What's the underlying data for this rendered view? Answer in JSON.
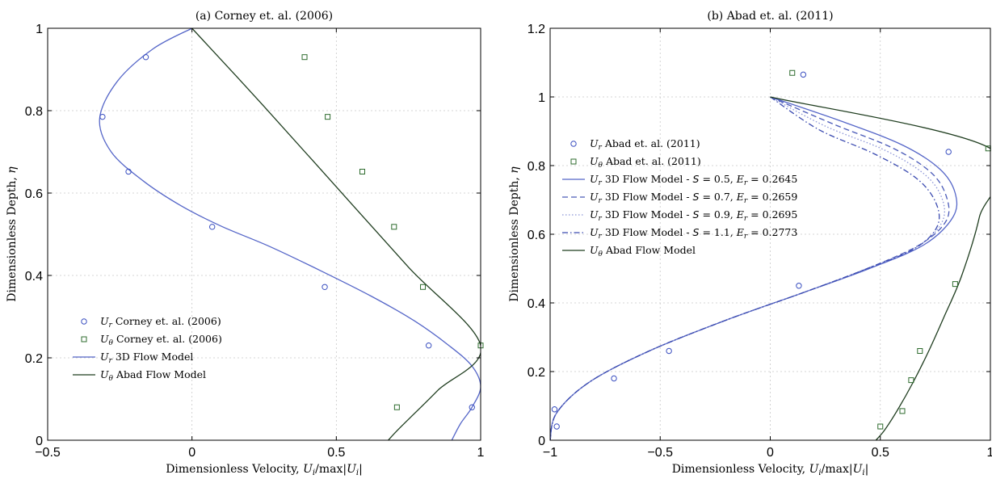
{
  "chart_data": [
    {
      "type": "line",
      "title": "(a) Corney et. al. (2006)",
      "xlabel": "Dimensionless Velocity, U_i/max|U_i|",
      "ylabel": "Dimensionless Depth, η",
      "xlim": [
        -0.5,
        1
      ],
      "ylim": [
        0,
        1
      ],
      "xticks": [
        -0.5,
        0,
        0.5,
        1
      ],
      "xtick_labels": [
        "−0.5",
        "0",
        "0.5",
        "1"
      ],
      "yticks": [
        0,
        0.2,
        0.4,
        0.6,
        0.8,
        1
      ],
      "ytick_labels": [
        "0",
        "0.2",
        "0.4",
        "0.6",
        "0.8",
        "1"
      ],
      "grid": true,
      "legend_position": "lower-left",
      "series": [
        {
          "name": "U_r Corney et. al. (2006)",
          "kind": "scatter",
          "marker": "circle",
          "color": "#3a4fc0",
          "x": [
            -0.16,
            -0.31,
            -0.22,
            0.07,
            0.46,
            0.82,
            0.97
          ],
          "y": [
            0.93,
            0.785,
            0.652,
            0.518,
            0.372,
            0.23,
            0.08
          ]
        },
        {
          "name": "U_θ Corney et. al. (2006)",
          "kind": "scatter",
          "marker": "square",
          "color": "#2e6b2e",
          "x": [
            0.39,
            0.47,
            0.59,
            0.7,
            0.8,
            1.0,
            0.71
          ],
          "y": [
            0.93,
            0.785,
            0.652,
            0.518,
            0.372,
            0.23,
            0.08
          ]
        },
        {
          "name": "U_r 3D Flow Model",
          "kind": "line",
          "dash": "solid",
          "color": "#5566c8",
          "x": [
            0,
            -0.135,
            -0.26,
            -0.32,
            -0.28,
            -0.17,
            -0.04,
            0.1,
            0.27,
            0.45,
            0.62,
            0.77,
            0.89,
            0.97,
            1.0,
            0.97,
            0.93,
            0.9
          ],
          "y": [
            1.0,
            0.95,
            0.87,
            0.78,
            0.7,
            0.63,
            0.57,
            0.52,
            0.47,
            0.41,
            0.35,
            0.29,
            0.23,
            0.18,
            0.13,
            0.08,
            0.04,
            0.0
          ]
        },
        {
          "name": "U_θ Abad Flow Model",
          "kind": "line",
          "dash": "solid",
          "color": "#1f3d1f",
          "x": [
            0,
            0.25,
            0.5,
            0.75,
            1.0,
            0.85,
            0.72,
            0.68
          ],
          "y": [
            1.0,
            0.81,
            0.615,
            0.42,
            0.23,
            0.12,
            0.03,
            0.0
          ]
        }
      ]
    },
    {
      "type": "line",
      "title": "(b) Abad et. al. (2011)",
      "xlabel": "Dimensionless Velocity, U_i/max|U_i|",
      "ylabel": "Dimensionless Depth, η",
      "xlim": [
        -1,
        1
      ],
      "ylim": [
        0,
        1.2
      ],
      "xticks": [
        -1,
        -0.5,
        0,
        0.5,
        1
      ],
      "xtick_labels": [
        "−1",
        "−0.5",
        "0",
        "0.5",
        "1"
      ],
      "yticks": [
        0,
        0.2,
        0.4,
        0.6,
        0.8,
        1,
        1.2
      ],
      "ytick_labels": [
        "0",
        "0.2",
        "0.4",
        "0.6",
        "0.8",
        "1",
        "1.2"
      ],
      "grid": true,
      "legend_position": "middle-left",
      "series": [
        {
          "name": "U_r Abad et. al. (2011)",
          "kind": "scatter",
          "marker": "circle",
          "color": "#3a4fc0",
          "x": [
            0.15,
            0.81,
            0.13,
            -0.46,
            -0.71,
            -0.97,
            -0.98
          ],
          "y": [
            1.065,
            0.84,
            0.45,
            0.26,
            0.18,
            0.04,
            0.09
          ]
        },
        {
          "name": "U_θ Abad et. al. (2011)",
          "kind": "scatter",
          "marker": "square",
          "color": "#2e6b2e",
          "x": [
            0.1,
            0.99,
            0.84,
            0.68,
            0.64,
            0.6,
            0.5
          ],
          "y": [
            1.07,
            0.85,
            0.455,
            0.26,
            0.175,
            0.085,
            0.04
          ]
        },
        {
          "name": "U_r 3D Flow Model - S = 0.5, E_r = 0.2645",
          "kind": "line",
          "dash": "solid",
          "color": "#5566c8",
          "x": [
            0,
            0.32,
            0.6,
            0.77,
            0.84,
            0.83,
            0.7,
            0.45,
            0.15,
            -0.2,
            -0.55,
            -0.82,
            -0.97,
            -1.0
          ],
          "y": [
            1.0,
            0.93,
            0.86,
            0.79,
            0.72,
            0.65,
            0.57,
            0.5,
            0.43,
            0.35,
            0.26,
            0.17,
            0.08,
            0.0
          ]
        },
        {
          "name": "U_r 3D Flow Model - S = 0.7, E_r = 0.2659",
          "kind": "line",
          "dash": "dashed",
          "color": "#4a5ab8",
          "x": [
            0,
            0.29,
            0.56,
            0.73,
            0.8,
            0.8,
            0.68,
            0.44,
            0.15,
            -0.2,
            -0.55,
            -0.82,
            -0.97,
            -1.0
          ],
          "y": [
            1.0,
            0.92,
            0.85,
            0.78,
            0.71,
            0.64,
            0.57,
            0.5,
            0.43,
            0.35,
            0.26,
            0.17,
            0.08,
            0.0
          ]
        },
        {
          "name": "U_r 3D Flow Model - S = 0.9, E_r = 0.2695",
          "kind": "line",
          "dash": "dotted",
          "color": "#8a93d6",
          "x": [
            0,
            0.25,
            0.52,
            0.7,
            0.78,
            0.78,
            0.67,
            0.44,
            0.15,
            -0.2,
            -0.55,
            -0.82,
            -0.97,
            -1.0
          ],
          "y": [
            1.0,
            0.915,
            0.845,
            0.775,
            0.705,
            0.635,
            0.565,
            0.5,
            0.43,
            0.35,
            0.26,
            0.17,
            0.08,
            0.0
          ]
        },
        {
          "name": "U_r 3D Flow Model - S = 1.1, E_r = 0.2773",
          "kind": "line",
          "dash": "dashdot",
          "color": "#3a4ab0",
          "x": [
            0,
            0.22,
            0.47,
            0.66,
            0.75,
            0.76,
            0.66,
            0.44,
            0.15,
            -0.2,
            -0.55,
            -0.82,
            -0.97,
            -1.0
          ],
          "y": [
            1.0,
            0.905,
            0.835,
            0.765,
            0.695,
            0.625,
            0.56,
            0.5,
            0.43,
            0.35,
            0.26,
            0.17,
            0.08,
            0.0
          ]
        },
        {
          "name": "U_θ Abad Flow Model",
          "kind": "line",
          "dash": "solid",
          "color": "#1f3d1f",
          "x": [
            0,
            1.0,
            0.95,
            0.87,
            0.79,
            0.72,
            0.65,
            0.58,
            0.52,
            0.48
          ],
          "y": [
            1.0,
            0.85,
            0.65,
            0.48,
            0.36,
            0.26,
            0.17,
            0.09,
            0.03,
            0.0
          ]
        }
      ]
    }
  ],
  "legend_a": [
    {
      "sym": "U",
      "sub": "r",
      "rest": " Corney et. al. (2006)"
    },
    {
      "sym": "U",
      "sub": "θ",
      "rest": " Corney et. al. (2006)"
    },
    {
      "sym": "U",
      "sub": "r",
      "rest": " 3D Flow Model"
    },
    {
      "sym": "U",
      "sub": "θ",
      "rest": " Abad Flow Model"
    }
  ],
  "legend_b": [
    {
      "sym": "U",
      "sub": "r",
      "rest": " Abad et. al. (2011)"
    },
    {
      "sym": "U",
      "sub": "θ",
      "rest": " Abad et. al. (2011)"
    },
    {
      "sym": "U",
      "sub": "r",
      "rest": " 3D Flow Model - S = 0.5, E",
      "sub2": "r",
      "rest2": " = 0.2645"
    },
    {
      "sym": "U",
      "sub": "r",
      "rest": " 3D Flow Model - S = 0.7, E",
      "sub2": "r",
      "rest2": " = 0.2659"
    },
    {
      "sym": "U",
      "sub": "r",
      "rest": " 3D Flow Model - S = 0.9, E",
      "sub2": "r",
      "rest2": " = 0.2695"
    },
    {
      "sym": "U",
      "sub": "r",
      "rest": " 3D Flow Model - S = 1.1, E",
      "sub2": "r",
      "rest2": " = 0.2773"
    },
    {
      "sym": "U",
      "sub": "θ",
      "rest": " Abad Flow Model"
    }
  ]
}
